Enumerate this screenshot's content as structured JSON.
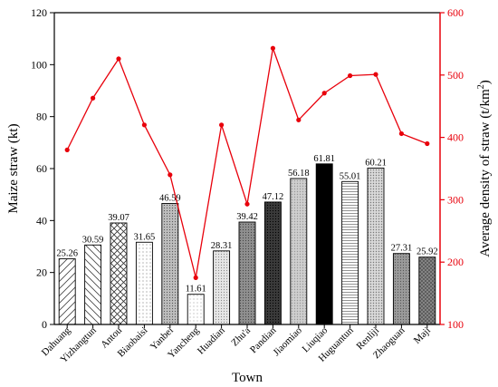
{
  "chart_data": {
    "type": "bar",
    "categories": [
      "Dahuang",
      "Yizhangtun",
      "Antou",
      "Biaobaisi",
      "Yanbei",
      "Yancheng",
      "Huadian",
      "Zhu'a",
      "Pandian",
      "Jiaomiao",
      "Liuqiao",
      "Huguantun",
      "Renliji",
      "Zhaoguan",
      "Maji"
    ],
    "xlabel": "Town",
    "series": [
      {
        "name": "",
        "type": "bar",
        "axis": "left",
        "values": [
          25.26,
          30.59,
          39.07,
          31.65,
          46.59,
          11.61,
          28.31,
          39.42,
          47.12,
          56.18,
          61.81,
          55.01,
          60.21,
          27.31,
          25.92
        ],
        "labels": [
          "25.26",
          "30.59",
          "39.07",
          "31.65",
          "46.59",
          "11.61",
          "28.31",
          "39.42",
          "47.12",
          "56.18",
          "61.81",
          "55.01",
          "60.21",
          "27.31",
          "25.92"
        ]
      },
      {
        "name": "",
        "type": "line",
        "axis": "right",
        "values": [
          380,
          463,
          526,
          420,
          340,
          175,
          420,
          293,
          543,
          428,
          471,
          499,
          501,
          406,
          390
        ]
      }
    ],
    "y_left": {
      "label": "Maize straw (kt)",
      "min": 0,
      "max": 120,
      "ticks": [
        "0",
        "20",
        "40",
        "60",
        "80",
        "100",
        "120"
      ]
    },
    "y_right": {
      "label_main": "Average density of straw (t/km",
      "label_sup": "2",
      "label_end": ")",
      "min": 100,
      "max": 600,
      "ticks": [
        "100",
        "200",
        "300",
        "400",
        "500",
        "600"
      ]
    },
    "colors": {
      "line": "#e8000b",
      "axis_right": "#e8000b",
      "axis_left": "#000000"
    },
    "grid": false
  }
}
